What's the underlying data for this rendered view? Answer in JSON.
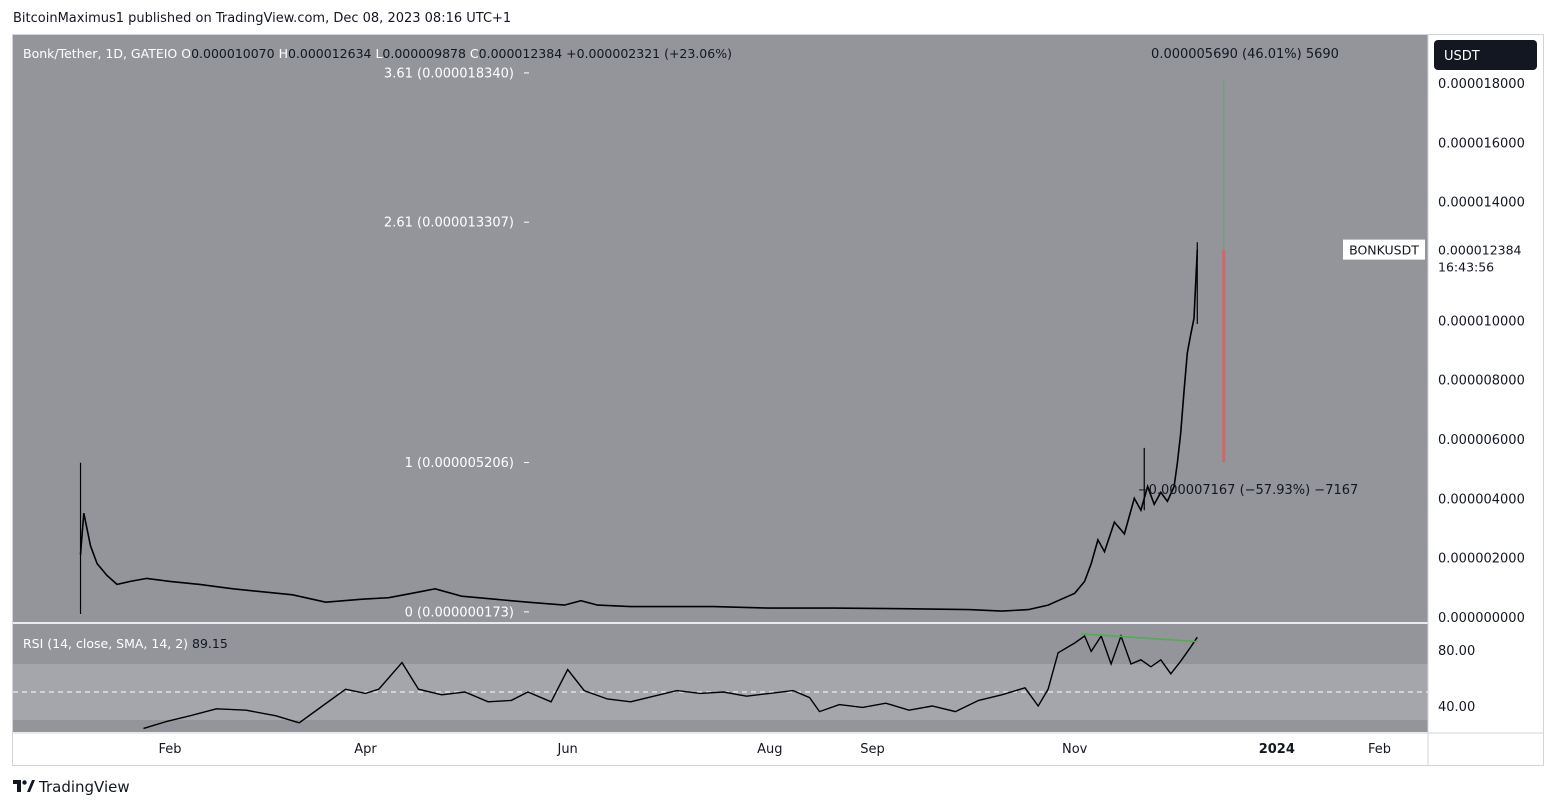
{
  "publish_line": "BitcoinMaximus1 published on TradingView.com, Dec 08, 2023 08:16 UTC+1",
  "footer_brand": "TradingView",
  "colors": {
    "pane_bg": "#93959b",
    "rsi_band": "#a4a6ac",
    "candle": "#000000",
    "divergence_line": "#4caf50",
    "range_up": "#4caf50",
    "range_down": "#ef5350",
    "price_label_bg": "#ffffff",
    "currency_badge_bg": "#131722"
  },
  "legend": {
    "symbol": "Bonk/Tether, 1D, GATEIO",
    "ohlc": [
      {
        "key": "O",
        "value": "0.000010070"
      },
      {
        "key": "H",
        "value": "0.000012634"
      },
      {
        "key": "L",
        "value": "0.000009878"
      },
      {
        "key": "C",
        "value": "0.000012384"
      }
    ],
    "change": "+0.000002321 (+23.06%)"
  },
  "currency_badge": "USDT",
  "last_price": {
    "symbol": "BONKUSDT",
    "value": "0.000012384",
    "countdown": "16:43:56"
  },
  "measure_labels": {
    "top": "0.000005690 (46.01%) 5690",
    "bottom": "−0.000007167 (−57.93%) −7167"
  },
  "fib_levels": [
    {
      "label": "3.61 (0.000018340)",
      "value": 1.834e-05
    },
    {
      "label": "2.61 (0.000013307)",
      "value": 1.3307e-05
    },
    {
      "label": "1 (0.000005206)",
      "value": 5.206e-06
    },
    {
      "label": "0 (0.000000173)",
      "value": 1.73e-07
    }
  ],
  "rsi": {
    "legend": "RSI (14, close, SMA, 14, 2)",
    "value": "89.15",
    "ticks": [
      {
        "label": "80.00",
        "value": 80
      },
      {
        "label": "40.00",
        "value": 40
      }
    ],
    "band": [
      30,
      70
    ],
    "midline": 50
  },
  "chart_data": {
    "type": "line",
    "symbol": "BONKUSDT",
    "interval": "1D",
    "exchange": "GATEIO",
    "ylim": [
      0,
      1.96e-05
    ],
    "y_ticks": [
      {
        "label": "0.000018000",
        "value": 1.8e-05
      },
      {
        "label": "0.000016000",
        "value": 1.6e-05
      },
      {
        "label": "0.000014000",
        "value": 1.4e-05
      },
      {
        "label": "0.000010000",
        "value": 1e-05
      },
      {
        "label": "0.000008000",
        "value": 8e-06
      },
      {
        "label": "0.000006000",
        "value": 6e-06
      },
      {
        "label": "0.000004000",
        "value": 4e-06
      },
      {
        "label": "0.000002000",
        "value": 2e-06
      },
      {
        "label": "0.000000000",
        "value": 0
      }
    ],
    "x_ticks": [
      {
        "label": "Feb",
        "date": "2023-02-01"
      },
      {
        "label": "Apr",
        "date": "2023-04-01"
      },
      {
        "label": "Jun",
        "date": "2023-06-01"
      },
      {
        "label": "Aug",
        "date": "2023-08-01"
      },
      {
        "label": "Sep",
        "date": "2023-09-01"
      },
      {
        "label": "Nov",
        "date": "2023-11-01"
      },
      {
        "label": "2024",
        "date": "2024-01-01"
      },
      {
        "label": "Feb",
        "date": "2024-02-01"
      }
    ],
    "price_series": [
      [
        "2023-01-05",
        2.1e-06
      ],
      [
        "2023-01-06",
        3.5e-06
      ],
      [
        "2023-01-08",
        2.4e-06
      ],
      [
        "2023-01-10",
        1.8e-06
      ],
      [
        "2023-01-13",
        1.4e-06
      ],
      [
        "2023-01-16",
        1.1e-06
      ],
      [
        "2023-01-20",
        1.2e-06
      ],
      [
        "2023-01-25",
        1.3e-06
      ],
      [
        "2023-02-01",
        1.2e-06
      ],
      [
        "2023-02-10",
        1.1e-06
      ],
      [
        "2023-02-20",
        9.5e-07
      ],
      [
        "2023-03-01",
        8.5e-07
      ],
      [
        "2023-03-10",
        7.5e-07
      ],
      [
        "2023-03-20",
        5e-07
      ],
      [
        "2023-03-31",
        6e-07
      ],
      [
        "2023-04-08",
        6.5e-07
      ],
      [
        "2023-04-15",
        8e-07
      ],
      [
        "2023-04-22",
        9.5e-07
      ],
      [
        "2023-04-30",
        7e-07
      ],
      [
        "2023-05-10",
        6e-07
      ],
      [
        "2023-05-20",
        5e-07
      ],
      [
        "2023-05-31",
        4e-07
      ],
      [
        "2023-06-05",
        5.5e-07
      ],
      [
        "2023-06-10",
        4e-07
      ],
      [
        "2023-06-20",
        3.5e-07
      ],
      [
        "2023-07-01",
        3.5e-07
      ],
      [
        "2023-07-15",
        3.5e-07
      ],
      [
        "2023-08-01",
        3e-07
      ],
      [
        "2023-08-20",
        3e-07
      ],
      [
        "2023-09-10",
        2.8e-07
      ],
      [
        "2023-09-30",
        2.5e-07
      ],
      [
        "2023-10-10",
        2e-07
      ],
      [
        "2023-10-18",
        2.5e-07
      ],
      [
        "2023-10-24",
        4e-07
      ],
      [
        "2023-10-28",
        6e-07
      ],
      [
        "2023-11-01",
        8e-07
      ],
      [
        "2023-11-04",
        1.2e-06
      ],
      [
        "2023-11-06",
        1.8e-06
      ],
      [
        "2023-11-08",
        2.6e-06
      ],
      [
        "2023-11-10",
        2.2e-06
      ],
      [
        "2023-11-13",
        3.2e-06
      ],
      [
        "2023-11-16",
        2.8e-06
      ],
      [
        "2023-11-19",
        4e-06
      ],
      [
        "2023-11-21",
        3.6e-06
      ],
      [
        "2023-11-23",
        4.4e-06
      ],
      [
        "2023-11-25",
        3.8e-06
      ],
      [
        "2023-11-27",
        4.2e-06
      ],
      [
        "2023-11-29",
        3.9e-06
      ],
      [
        "2023-12-01",
        4.4e-06
      ],
      [
        "2023-12-02",
        5.2e-06
      ],
      [
        "2023-12-03",
        6.2e-06
      ],
      [
        "2023-12-04",
        7.6e-06
      ],
      [
        "2023-12-05",
        8.9e-06
      ],
      [
        "2023-12-06",
        9.5e-06
      ],
      [
        "2023-12-07",
        1.007e-05
      ],
      [
        "2023-12-08",
        1.2384e-05
      ]
    ],
    "spikes": [
      {
        "date": "2023-01-05",
        "high": 5.2e-06,
        "low": 1e-07
      },
      {
        "date": "2023-11-22",
        "high": 5.7e-06,
        "low": 3.6e-06
      },
      {
        "date": "2023-12-08",
        "high": 1.2634e-05,
        "low": 9.878e-06
      }
    ],
    "rsi_series": [
      [
        "2023-01-24",
        24
      ],
      [
        "2023-01-31",
        29
      ],
      [
        "2023-02-07",
        33
      ],
      [
        "2023-02-15",
        38
      ],
      [
        "2023-02-24",
        37
      ],
      [
        "2023-03-05",
        33
      ],
      [
        "2023-03-12",
        28
      ],
      [
        "2023-03-19",
        40
      ],
      [
        "2023-03-26",
        52
      ],
      [
        "2023-04-01",
        49
      ],
      [
        "2023-04-05",
        52
      ],
      [
        "2023-04-12",
        71
      ],
      [
        "2023-04-17",
        52
      ],
      [
        "2023-04-24",
        48
      ],
      [
        "2023-05-01",
        50
      ],
      [
        "2023-05-08",
        43
      ],
      [
        "2023-05-15",
        44
      ],
      [
        "2023-05-20",
        50
      ],
      [
        "2023-05-27",
        43
      ],
      [
        "2023-06-01",
        66
      ],
      [
        "2023-06-06",
        51
      ],
      [
        "2023-06-13",
        45
      ],
      [
        "2023-06-20",
        43
      ],
      [
        "2023-06-27",
        47
      ],
      [
        "2023-07-04",
        51
      ],
      [
        "2023-07-11",
        49
      ],
      [
        "2023-07-18",
        50
      ],
      [
        "2023-07-25",
        47
      ],
      [
        "2023-08-01",
        49
      ],
      [
        "2023-08-08",
        51
      ],
      [
        "2023-08-13",
        46
      ],
      [
        "2023-08-16",
        36
      ],
      [
        "2023-08-22",
        41
      ],
      [
        "2023-08-29",
        39
      ],
      [
        "2023-09-05",
        42
      ],
      [
        "2023-09-12",
        37
      ],
      [
        "2023-09-19",
        40
      ],
      [
        "2023-09-26",
        36
      ],
      [
        "2023-10-03",
        44
      ],
      [
        "2023-10-10",
        48
      ],
      [
        "2023-10-17",
        53
      ],
      [
        "2023-10-21",
        40
      ],
      [
        "2023-10-24",
        52
      ],
      [
        "2023-10-27",
        78
      ],
      [
        "2023-11-01",
        85
      ],
      [
        "2023-11-04",
        90
      ],
      [
        "2023-11-06",
        79
      ],
      [
        "2023-11-09",
        90
      ],
      [
        "2023-11-12",
        70
      ],
      [
        "2023-11-15",
        90
      ],
      [
        "2023-11-18",
        70
      ],
      [
        "2023-11-21",
        73
      ],
      [
        "2023-11-24",
        68
      ],
      [
        "2023-11-27",
        73
      ],
      [
        "2023-11-30",
        63
      ],
      [
        "2023-12-03",
        72
      ],
      [
        "2023-12-06",
        82
      ],
      [
        "2023-12-08",
        89.15
      ]
    ],
    "rsi_ylim": [
      15,
      100
    ],
    "annotations": {
      "rsi_divergence_line": {
        "start": [
          "2023-11-03",
          91.5
        ],
        "end": [
          "2023-12-08",
          86
        ]
      },
      "measure_up": {
        "date": "2023-12-16",
        "from": 1.2384e-05,
        "to": 1.8074e-05
      },
      "measure_down": {
        "date": "2023-12-16",
        "from": 1.2384e-05,
        "to": 5.217e-06
      }
    }
  }
}
